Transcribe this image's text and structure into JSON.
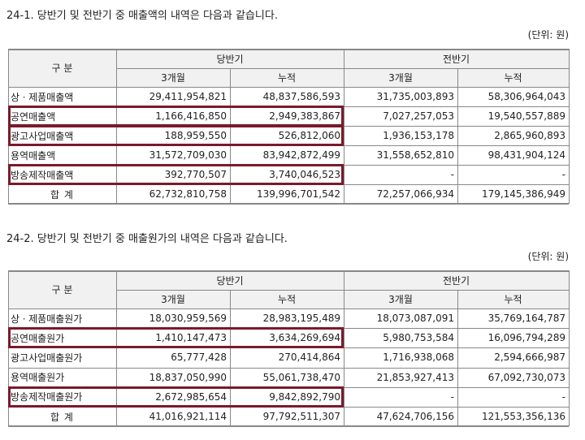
{
  "section1": {
    "title": "24-1. 당반기 및 전반기 중 매출액의 내역은 다음과 같습니다.",
    "unit": "(단위: 원)",
    "table": {
      "header": [
        "구 분",
        "당반기",
        "전반기"
      ],
      "subheader": [
        "3개월",
        "누적",
        "3개월",
        "누적"
      ],
      "rows": [
        [
          "상ㆍ제품매출액",
          "29,411,954,821",
          "48,837,586,593",
          "31,735,003,893",
          "58,306,964,043"
        ],
        [
          "공연매출액",
          "1,166,416,850",
          "2,949,383,867",
          "7,027,257,053",
          "19,540,557,889"
        ],
        [
          "광고사업매출액",
          "188,959,550",
          "526,812,060",
          "1,936,153,178",
          "2,865,960,893"
        ],
        [
          "용역매출액",
          "31,572,709,030",
          "83,942,872,499",
          "31,558,652,810",
          "98,431,904,124"
        ],
        [
          "방송제작매출액",
          "392,770,507",
          "3,740,046,523",
          "-",
          "-"
        ],
        [
          "합 계",
          "62,732,810,758",
          "139,996,701,542",
          "72,257,066,934",
          "179,145,386,949"
        ]
      ]
    }
  },
  "section2": {
    "title": "24-2. 당반기 및 전반기 중 매출원가의 내역은 다음과 같습니다.",
    "unit": "(단위: 원)",
    "table": {
      "header": [
        "구 분",
        "당반기",
        "전반기"
      ],
      "subheader": [
        "3개월",
        "누적",
        "3개월",
        "누적"
      ],
      "rows": [
        [
          "상ㆍ제품매출원가",
          "18,030,959,569",
          "28,983,195,489",
          "18,073,087,091",
          "35,769,164,787"
        ],
        [
          "공연매출원가",
          "1,410,147,473",
          "3,634,269,694",
          "5,980,753,584",
          "16,096,794,289"
        ],
        [
          "광고사업매출원가",
          "65,777,428",
          "270,414,864",
          "1,716,938,068",
          "2,594,666,987"
        ],
        [
          "용역매출원가",
          "18,837,050,990",
          "55,061,738,470",
          "21,853,927,413",
          "67,092,730,073"
        ],
        [
          "방송제작매출원가",
          "2,672,985,654",
          "9,842,892,790",
          "-",
          "-"
        ],
        [
          "합 계",
          "41,016,921,114",
          "97,792,511,307",
          "47,624,706,156",
          "121,553,356,136"
        ]
      ]
    }
  }
}
